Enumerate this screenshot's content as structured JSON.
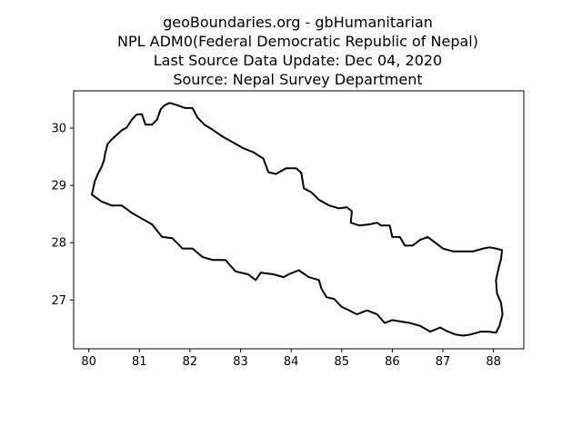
{
  "title_lines": [
    "geoBoundaries.org - gbHumanitarian",
    "NPL ADM0(Federal Democratic Republic of Nepal)",
    "Last Source Data Update: Dec 04, 2020",
    "Source: Nepal Survey Department"
  ],
  "chart_data": {
    "type": "map",
    "title": "geoBoundaries.org - gbHumanitarian\nNPL ADM0(Federal Democratic Republic of Nepal)\nLast Source Data Update: Dec 04, 2020\nSource: Nepal Survey Department",
    "xlim": [
      79.7,
      88.6
    ],
    "ylim": [
      26.15,
      30.65
    ],
    "x_ticks": [
      80,
      81,
      82,
      83,
      84,
      85,
      86,
      87,
      88
    ],
    "y_ticks": [
      27,
      28,
      29,
      30
    ],
    "grid": false,
    "boundary_color": "#000000",
    "boundary_lonlat": [
      [
        80.06,
        28.84
      ],
      [
        80.12,
        29.08
      ],
      [
        80.18,
        29.2
      ],
      [
        80.25,
        29.32
      ],
      [
        80.3,
        29.44
      ],
      [
        80.32,
        29.55
      ],
      [
        80.37,
        29.72
      ],
      [
        80.45,
        29.8
      ],
      [
        80.55,
        29.88
      ],
      [
        80.65,
        29.96
      ],
      [
        80.75,
        30.01
      ],
      [
        80.85,
        30.15
      ],
      [
        80.95,
        30.24
      ],
      [
        81.05,
        30.24
      ],
      [
        81.12,
        30.06
      ],
      [
        81.25,
        30.06
      ],
      [
        81.35,
        30.15
      ],
      [
        81.42,
        30.33
      ],
      [
        81.5,
        30.4
      ],
      [
        81.6,
        30.44
      ],
      [
        81.75,
        30.4
      ],
      [
        81.9,
        30.35
      ],
      [
        82.05,
        30.35
      ],
      [
        82.15,
        30.18
      ],
      [
        82.3,
        30.05
      ],
      [
        82.45,
        29.97
      ],
      [
        82.65,
        29.85
      ],
      [
        82.85,
        29.75
      ],
      [
        83.05,
        29.65
      ],
      [
        83.25,
        29.58
      ],
      [
        83.45,
        29.47
      ],
      [
        83.55,
        29.23
      ],
      [
        83.7,
        29.2
      ],
      [
        83.9,
        29.3
      ],
      [
        84.1,
        29.3
      ],
      [
        84.2,
        29.22
      ],
      [
        84.25,
        28.95
      ],
      [
        84.4,
        28.88
      ],
      [
        84.55,
        28.75
      ],
      [
        84.75,
        28.65
      ],
      [
        84.95,
        28.6
      ],
      [
        85.1,
        28.62
      ],
      [
        85.2,
        28.55
      ],
      [
        85.18,
        28.35
      ],
      [
        85.35,
        28.3
      ],
      [
        85.55,
        28.32
      ],
      [
        85.7,
        28.35
      ],
      [
        85.78,
        28.3
      ],
      [
        85.95,
        28.3
      ],
      [
        86.0,
        28.1
      ],
      [
        86.15,
        28.1
      ],
      [
        86.25,
        27.95
      ],
      [
        86.4,
        27.95
      ],
      [
        86.55,
        28.05
      ],
      [
        86.7,
        28.1
      ],
      [
        86.85,
        28.0
      ],
      [
        87.0,
        27.9
      ],
      [
        87.2,
        27.85
      ],
      [
        87.4,
        27.85
      ],
      [
        87.6,
        27.85
      ],
      [
        87.8,
        27.9
      ],
      [
        87.92,
        27.92
      ],
      [
        88.05,
        27.9
      ],
      [
        88.17,
        27.87
      ],
      [
        88.15,
        27.72
      ],
      [
        88.1,
        27.55
      ],
      [
        88.05,
        27.35
      ],
      [
        88.07,
        27.12
      ],
      [
        88.15,
        26.95
      ],
      [
        88.18,
        26.75
      ],
      [
        88.12,
        26.55
      ],
      [
        88.05,
        26.43
      ],
      [
        87.9,
        26.45
      ],
      [
        87.75,
        26.45
      ],
      [
        87.55,
        26.4
      ],
      [
        87.4,
        26.38
      ],
      [
        87.25,
        26.4
      ],
      [
        87.1,
        26.45
      ],
      [
        86.95,
        26.52
      ],
      [
        86.75,
        26.45
      ],
      [
        86.55,
        26.55
      ],
      [
        86.35,
        26.6
      ],
      [
        86.2,
        26.62
      ],
      [
        86.0,
        26.65
      ],
      [
        85.85,
        26.6
      ],
      [
        85.7,
        26.75
      ],
      [
        85.5,
        26.82
      ],
      [
        85.3,
        26.75
      ],
      [
        85.15,
        26.82
      ],
      [
        85.0,
        26.88
      ],
      [
        84.85,
        27.02
      ],
      [
        84.7,
        27.05
      ],
      [
        84.6,
        27.2
      ],
      [
        84.55,
        27.35
      ],
      [
        84.35,
        27.4
      ],
      [
        84.15,
        27.52
      ],
      [
        83.95,
        27.45
      ],
      [
        83.85,
        27.4
      ],
      [
        83.65,
        27.45
      ],
      [
        83.4,
        27.48
      ],
      [
        83.3,
        27.35
      ],
      [
        83.15,
        27.45
      ],
      [
        82.9,
        27.5
      ],
      [
        82.7,
        27.7
      ],
      [
        82.45,
        27.7
      ],
      [
        82.25,
        27.75
      ],
      [
        82.05,
        27.9
      ],
      [
        81.85,
        27.9
      ],
      [
        81.65,
        28.08
      ],
      [
        81.45,
        28.1
      ],
      [
        81.25,
        28.32
      ],
      [
        81.05,
        28.42
      ],
      [
        80.85,
        28.52
      ],
      [
        80.65,
        28.65
      ],
      [
        80.45,
        28.65
      ],
      [
        80.25,
        28.72
      ],
      [
        80.06,
        28.84
      ]
    ]
  }
}
